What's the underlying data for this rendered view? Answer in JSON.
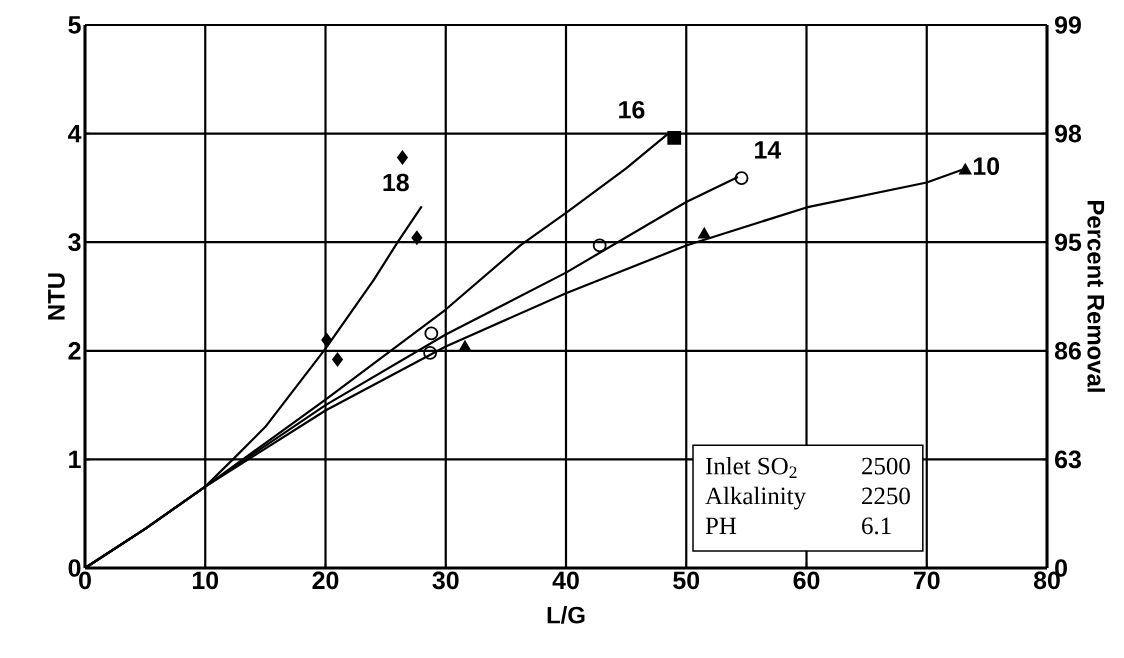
{
  "chart_data": {
    "type": "line",
    "xlabel": "L/G",
    "ylabel": "NTU",
    "y2label": "Percent Removal",
    "xlim": [
      0,
      80
    ],
    "xticks": [
      0,
      10,
      20,
      30,
      40,
      50,
      60,
      70,
      80
    ],
    "ylim": [
      0,
      5
    ],
    "yticks": [
      0,
      1,
      2,
      3,
      4,
      5
    ],
    "grid": true,
    "series": [
      {
        "color": "#000000",
        "marker": "none",
        "x": [
          0,
          5,
          10,
          12.3,
          15,
          20,
          24,
          26,
          28
        ],
        "values": [
          0,
          0.36,
          0.75,
          1.0,
          1.3,
          2.02,
          2.65,
          3.0,
          3.33
        ]
      },
      {
        "color": "#000000",
        "marker": "none",
        "x": [
          0,
          5,
          10,
          20,
          30,
          36.2,
          40,
          45,
          48.5
        ],
        "values": [
          0,
          0.36,
          0.75,
          1.55,
          2.38,
          2.97,
          3.27,
          3.68,
          4.0
        ]
      },
      {
        "color": "#000000",
        "marker": "none",
        "x": [
          0,
          5,
          10,
          20,
          30,
          40,
          50,
          54.3
        ],
        "values": [
          0,
          0.36,
          0.75,
          1.5,
          2.15,
          2.72,
          3.37,
          3.6
        ]
      },
      {
        "color": "#000000",
        "marker": "none",
        "x": [
          0,
          5,
          10,
          20,
          30,
          40,
          50,
          60,
          70,
          73
        ],
        "values": [
          0,
          0.36,
          0.75,
          1.45,
          2.04,
          2.53,
          2.97,
          3.32,
          3.55,
          3.67
        ]
      },
      {
        "type": "scatter",
        "color": "#000000",
        "marker": "diamond",
        "x": [
          20.1,
          21.0,
          26.4,
          27.6
        ],
        "values": [
          2.1,
          1.92,
          3.78,
          3.04
        ]
      },
      {
        "type": "scatter",
        "color": "#000000",
        "marker": "square",
        "x": [
          49.0
        ],
        "values": [
          3.96
        ]
      },
      {
        "type": "scatter",
        "color": "#000000",
        "marker": "circle",
        "x": [
          28.8,
          28.7,
          42.8,
          54.6
        ],
        "values": [
          2.16,
          1.98,
          2.97,
          3.59
        ]
      },
      {
        "type": "scatter",
        "color": "#000000",
        "marker": "triangle",
        "x": [
          31.6,
          51.5,
          73.2
        ],
        "values": [
          2.03,
          3.07,
          3.66
        ]
      }
    ],
    "annotations": [
      "18",
      "16",
      "14",
      "10",
      "Inlet SO$_{2}$",
      "2500",
      "Alkalinity",
      "2250",
      "PH",
      "6.1",
      "0",
      "63",
      "86",
      "95",
      "98",
      "99"
    ]
  }
}
